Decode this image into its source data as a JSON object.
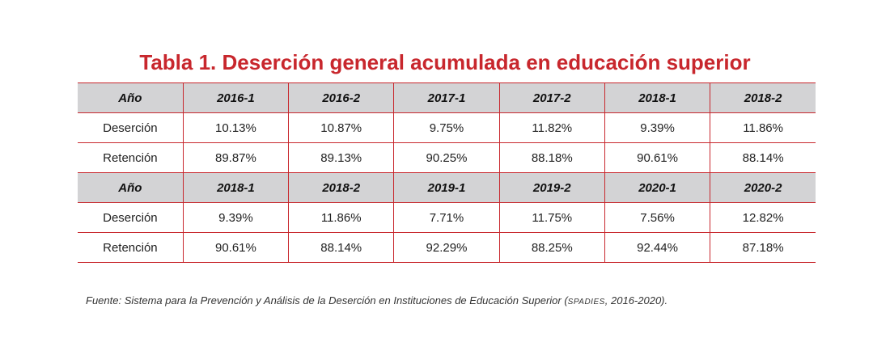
{
  "title": "Tabla 1. Deserción general acumulada en educación superior",
  "tables": [
    {
      "header": [
        "Año",
        "2016-1",
        "2016-2",
        "2017-1",
        "2017-2",
        "2018-1",
        "2018-2"
      ],
      "rows": [
        {
          "label": "Deserción",
          "values": [
            "10.13%",
            "10.87%",
            "9.75%",
            "11.82%",
            "9.39%",
            "11.86%"
          ]
        },
        {
          "label": "Retención",
          "values": [
            "89.87%",
            "89.13%",
            "90.25%",
            "88.18%",
            "90.61%",
            "88.14%"
          ]
        }
      ]
    },
    {
      "header": [
        "Año",
        "2018-1",
        "2018-2",
        "2019-1",
        "2019-2",
        "2020-1",
        "2020-2"
      ],
      "rows": [
        {
          "label": "Deserción",
          "values": [
            "9.39%",
            "11.86%",
            "7.71%",
            "11.75%",
            "7.56%",
            "12.82%"
          ]
        },
        {
          "label": "Retención",
          "values": [
            "90.61%",
            "88.14%",
            "92.29%",
            "88.25%",
            "92.44%",
            "87.18%"
          ]
        }
      ]
    }
  ],
  "source": {
    "prefix": "Fuente: Sistema para la Prevención y Análisis de la Deserción en Instituciones de Educación Superior (",
    "acronym": "SPADIES",
    "suffix": ", 2016-2020)."
  }
}
